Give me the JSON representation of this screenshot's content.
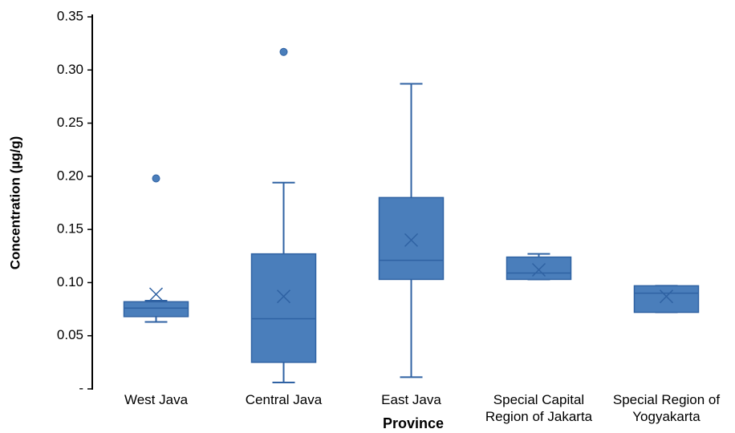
{
  "chart_data": {
    "type": "box",
    "y_label": "Concentration (µg/g)",
    "x_label": "Province",
    "categories": [
      "West Java",
      "Central Java",
      "East Java",
      "Special Capital Region of Jakarta",
      "Special Region of Yogyakarta"
    ],
    "min": [
      0.063,
      0.006,
      0.011,
      0.103,
      0.072
    ],
    "q1": [
      0.068,
      0.025,
      0.103,
      0.103,
      0.072
    ],
    "median": [
      0.076,
      0.066,
      0.121,
      0.109,
      0.09
    ],
    "q3": [
      0.082,
      0.127,
      0.18,
      0.124,
      0.097
    ],
    "max": [
      0.083,
      0.194,
      0.287,
      0.127,
      0.097
    ],
    "mean": [
      0.089,
      0.087,
      0.14,
      0.112,
      0.087
    ],
    "outliers": [
      [
        0.198
      ],
      [
        0.317
      ],
      [],
      [],
      []
    ],
    "color": "#4a7ebb",
    "ylim": [
      0,
      0.35
    ],
    "yticks": [
      {
        "value": 0,
        "label": "-"
      },
      0.05,
      {
        "value": 0.1,
        "label": "0.10"
      },
      0.15,
      {
        "value": 0.2,
        "label": "0.20"
      },
      0.25,
      {
        "value": 0.3,
        "label": "0.30"
      },
      0.35
    ]
  }
}
